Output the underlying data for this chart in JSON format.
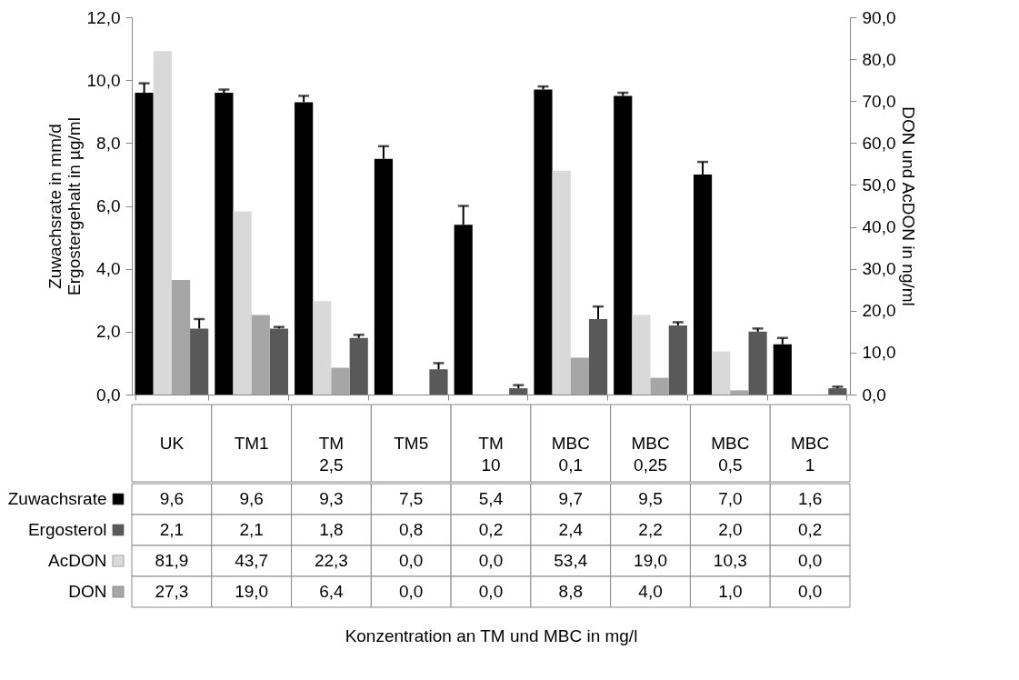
{
  "chart_data": {
    "type": "bar",
    "ylabel": "Zuwachsrate in mm/d\nErgostergehalt in µg/ml",
    "y2label": "DON und AcDON in ng/ml",
    "legend": "bottom left",
    "annotations": [
      "Konzentration an TM und MBC in mg/l"
    ],
    "categories": [
      "UK",
      "TM1",
      "TM 2,5",
      "TM5",
      "TM 10",
      "MBC 0,1",
      "MBC 0,25",
      "MBC 0,5",
      "MBC 1"
    ],
    "series": [
      {
        "name": "Zuwachsrate",
        "color": "#000000",
        "values": [
          9.6,
          9.6,
          9.3,
          7.5,
          5.4,
          9.7,
          9.5,
          7.0,
          1.6
        ],
        "value_labels": [
          "9,6",
          "9,6",
          "9,3",
          "7,5",
          "5,4",
          "9,7",
          "9,5",
          "7,0",
          "1,6"
        ],
        "errors": [
          [
            9.6,
            9.9
          ],
          [
            9.6,
            9.7
          ],
          [
            9.3,
            9.5
          ],
          [
            7.5,
            7.9
          ],
          [
            5.4,
            6.0
          ],
          [
            9.7,
            9.8
          ],
          [
            9.5,
            9.6
          ],
          [
            7.0,
            7.4
          ],
          [
            1.6,
            1.8
          ]
        ]
      },
      {
        "name": "Ergosterol",
        "color": "#595959",
        "values": [
          2.1,
          2.1,
          1.8,
          0.8,
          0.2,
          2.4,
          2.2,
          2.0,
          0.2
        ],
        "value_labels": [
          "2,1",
          "2,1",
          "1,8",
          "0,8",
          "0,2",
          "2,4",
          "2,2",
          "2,0",
          "0,2"
        ],
        "errors": [
          [
            2.1,
            2.4
          ],
          [
            2.1,
            2.15
          ],
          [
            1.8,
            1.9
          ],
          [
            0.8,
            1.0
          ],
          [
            0.2,
            0.3
          ],
          [
            2.4,
            2.8
          ],
          [
            2.2,
            2.3
          ],
          [
            2.0,
            2.1
          ],
          [
            0.2,
            0.25
          ]
        ]
      },
      {
        "name": "AcDON",
        "color": "#d9d9d9",
        "axis": "y2",
        "values": [
          81.9,
          43.7,
          22.3,
          0.0,
          0.0,
          53.4,
          19.0,
          10.3,
          0.0
        ],
        "value_labels": [
          "81,9",
          "43,7",
          "22,3",
          "0,0",
          "0,0",
          "53,4",
          "19,0",
          "10,3",
          "0,0"
        ]
      },
      {
        "name": "DON",
        "color": "#a6a6a6",
        "axis": "y2",
        "values": [
          27.3,
          19.0,
          6.4,
          0.0,
          0.0,
          8.8,
          4.0,
          1.0,
          0.0
        ],
        "value_labels": [
          "27,3",
          "19,0",
          "6,4",
          "0,0",
          "0,0",
          "8,8",
          "4,0",
          "1,0",
          "0,0"
        ]
      }
    ],
    "ylim": [
      0,
      12
    ],
    "yticks": [
      {
        "value": 0,
        "label": "0,0"
      },
      {
        "value": 2,
        "label": "2,0"
      },
      {
        "value": 4,
        "label": "4,0"
      },
      {
        "value": 6,
        "label": "6,0"
      },
      {
        "value": 8,
        "label": "8,0"
      },
      {
        "value": 10,
        "label": "10,0"
      },
      {
        "value": 12,
        "label": "12,0"
      }
    ],
    "y2lim": [
      0,
      90
    ],
    "y2ticks": [
      {
        "value": 0,
        "label": "0,0"
      },
      {
        "value": 10,
        "label": "10,0"
      },
      {
        "value": 20,
        "label": "20,0"
      },
      {
        "value": 30,
        "label": "30,0"
      },
      {
        "value": 40,
        "label": "40,0"
      },
      {
        "value": 50,
        "label": "50,0"
      },
      {
        "value": 60,
        "label": "60,0"
      },
      {
        "value": 70,
        "label": "70,0"
      },
      {
        "value": 80,
        "label": "80,0"
      },
      {
        "value": 90,
        "label": "90,0"
      }
    ]
  }
}
